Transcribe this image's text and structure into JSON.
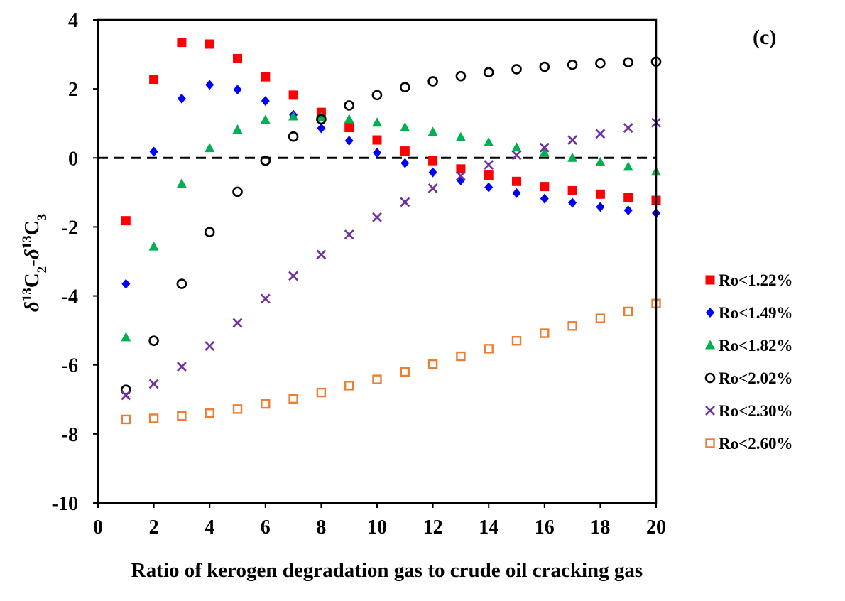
{
  "chart_data": {
    "type": "scatter",
    "panel_label": "(c)",
    "xlabel": "Ratio of kerogen degradation gas to crude oil cracking gas",
    "ylabel": {
      "delta": "δ",
      "sup1": "13",
      "c1": "C",
      "sub1": "2",
      "dash": "-",
      "delta2": "δ",
      "sup2": "13",
      "c2": "C",
      "sub2": "3"
    },
    "xlim": [
      0,
      20
    ],
    "ylim": [
      -10,
      4
    ],
    "xticks": [
      0,
      2,
      4,
      6,
      8,
      10,
      12,
      14,
      16,
      18,
      20
    ],
    "yticks": [
      -10,
      -8,
      -6,
      -4,
      -2,
      0,
      2,
      4
    ],
    "reference_line": {
      "y": 0,
      "style": "dashed"
    },
    "x": [
      1,
      2,
      3,
      4,
      5,
      6,
      7,
      8,
      9,
      10,
      11,
      12,
      13,
      14,
      15,
      16,
      17,
      18,
      19,
      20
    ],
    "series": [
      {
        "name": "Ro<1.22%",
        "legend_label": "Ro<1.22%",
        "marker": "square-filled",
        "color": "#ff0000",
        "values": [
          -1.82,
          2.28,
          3.35,
          3.3,
          2.88,
          2.35,
          1.82,
          1.32,
          0.88,
          0.52,
          0.2,
          -0.08,
          -0.32,
          -0.5,
          -0.68,
          -0.83,
          -0.95,
          -1.05,
          -1.15,
          -1.23
        ]
      },
      {
        "name": "Ro<1.49%",
        "legend_label": "Ro<1.49%",
        "marker": "diamond-filled",
        "color": "#0000ff",
        "values": [
          -3.65,
          0.18,
          1.72,
          2.12,
          1.98,
          1.65,
          1.25,
          0.86,
          0.5,
          0.15,
          -0.15,
          -0.42,
          -0.65,
          -0.85,
          -1.02,
          -1.18,
          -1.3,
          -1.42,
          -1.52,
          -1.6
        ]
      },
      {
        "name": "Ro<1.82%",
        "legend_label": "Ro<1.82%",
        "marker": "triangle-filled",
        "color": "#00b050",
        "values": [
          -5.2,
          -2.57,
          -0.75,
          0.28,
          0.82,
          1.1,
          1.2,
          1.18,
          1.12,
          1.02,
          0.88,
          0.75,
          0.6,
          0.45,
          0.3,
          0.15,
          0.0,
          -0.12,
          -0.26,
          -0.4
        ]
      },
      {
        "name": "Ro<2.02%",
        "legend_label": "Ro<2.02%",
        "marker": "circle-open",
        "color": "#000000",
        "values": [
          -6.72,
          -5.3,
          -3.65,
          -2.15,
          -0.98,
          -0.08,
          0.62,
          1.12,
          1.52,
          1.82,
          2.05,
          2.22,
          2.37,
          2.48,
          2.57,
          2.64,
          2.7,
          2.74,
          2.77,
          2.79
        ]
      },
      {
        "name": "Ro<2.30%",
        "legend_label": "Ro<2.30%",
        "marker": "x",
        "color": "#7030a0",
        "values": [
          -6.88,
          -6.55,
          -6.05,
          -5.45,
          -4.78,
          -4.08,
          -3.42,
          -2.8,
          -2.22,
          -1.72,
          -1.28,
          -0.88,
          -0.52,
          -0.2,
          0.08,
          0.3,
          0.52,
          0.7,
          0.87,
          1.02
        ]
      },
      {
        "name": "Ro<2.60%",
        "legend_label": "Ro<2.60%",
        "marker": "square-open",
        "color": "#ed7d31",
        "values": [
          -7.58,
          -7.55,
          -7.48,
          -7.4,
          -7.28,
          -7.13,
          -6.98,
          -6.8,
          -6.6,
          -6.42,
          -6.2,
          -5.98,
          -5.75,
          -5.53,
          -5.3,
          -5.08,
          -4.87,
          -4.65,
          -4.45,
          -4.22
        ]
      }
    ]
  }
}
